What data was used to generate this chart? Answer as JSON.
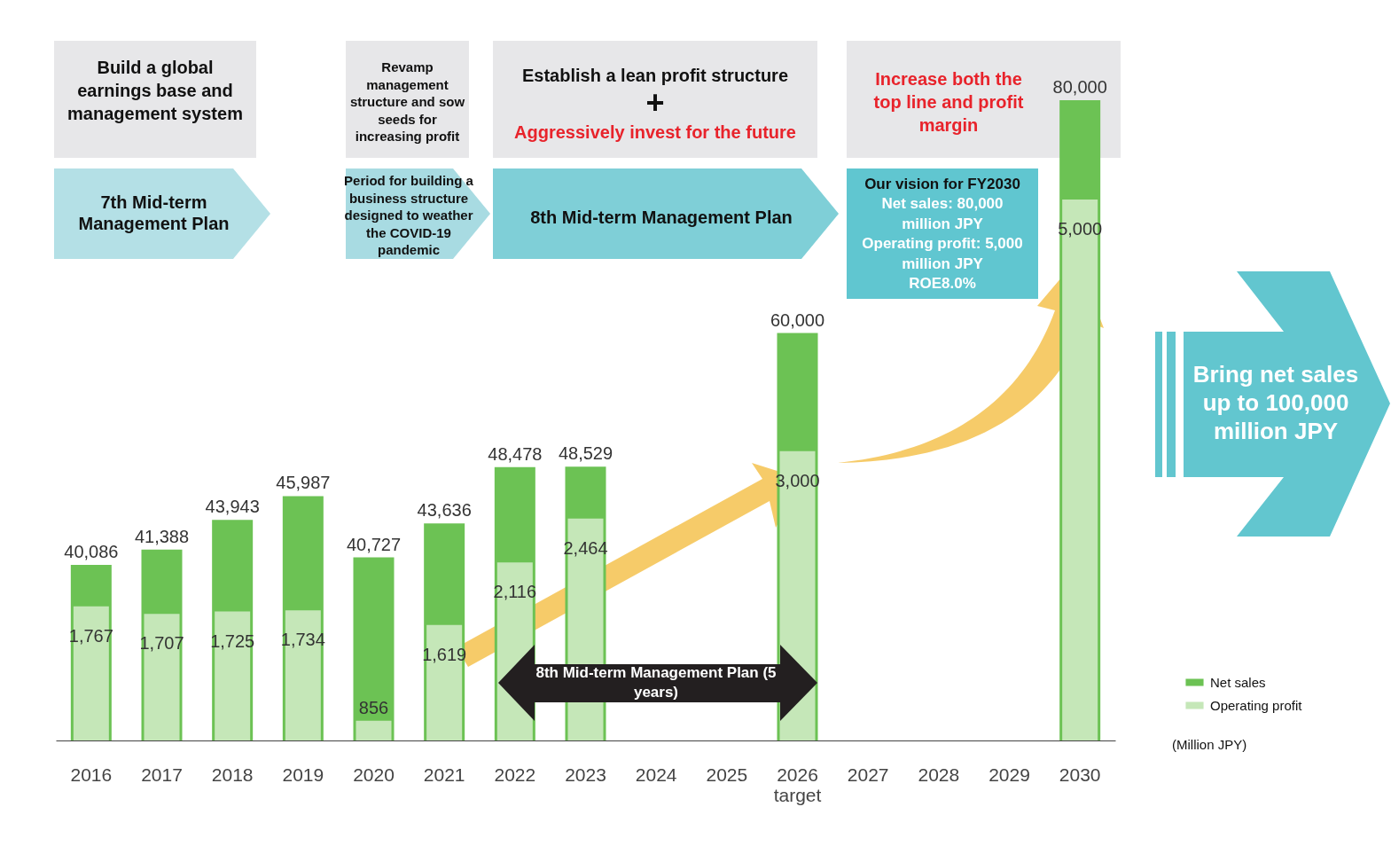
{
  "chart_data": {
    "type": "bar",
    "categories": [
      "2016",
      "2017",
      "2018",
      "2019",
      "2020",
      "2021",
      "2022",
      "2023",
      "2024",
      "2025",
      "2026 target",
      "2027",
      "2028",
      "2029",
      "2030"
    ],
    "series": [
      {
        "name": "Net sales",
        "color": "#6cc254",
        "values": [
          40086,
          41388,
          43943,
          45987,
          40727,
          43636,
          48478,
          48529,
          null,
          null,
          60000,
          null,
          null,
          null,
          80000
        ],
        "value_labels": [
          "40,086",
          "41,388",
          "43,943",
          "45,987",
          "40,727",
          "43,636",
          "48,478",
          "48,529",
          null,
          null,
          "60,000",
          null,
          null,
          null,
          "80,000"
        ]
      },
      {
        "name": "Operating profit",
        "color": "#c5e7b8",
        "axis": "y2",
        "values": [
          1767,
          1707,
          1725,
          1734,
          856,
          1619,
          2116,
          2464,
          null,
          null,
          3000,
          null,
          null,
          null,
          5000
        ],
        "value_labels": [
          "1,767",
          "1,707",
          "1,725",
          "1,734",
          "856",
          "1,619",
          "2,116",
          "2,464",
          null,
          null,
          "3,000",
          null,
          null,
          null,
          "5,000"
        ]
      }
    ],
    "ylim": [
      25000,
      80000
    ],
    "y2lim": [
      700,
      5790
    ],
    "tick_labels": "x",
    "legend": "bottom right",
    "annotations": [
      "Build a global earnings base and management system",
      "Revamp management structure and sow seeds for increasing profit",
      "Establish a lean profit structure",
      "+",
      "Aggressively invest for the future",
      "Increase both the top line and profit margin",
      "7th Mid-term Management Plan",
      "Period for building a business structure designed to weather the COVID-19 pandemic",
      "8th Mid-term Management Plan",
      "Our vision for FY2030",
      "Net sales: 80,000 million JPY",
      "Operating profit: 5,000 million JPY",
      "ROE8.0%",
      "Bring net sales up to 100,000 million JPY",
      "8th Mid-term Management Plan (5 years)",
      "(Million JPY)"
    ]
  }
}
